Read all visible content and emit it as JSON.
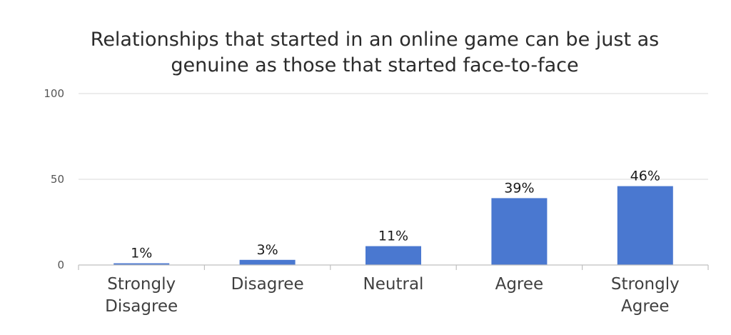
{
  "chart_data": {
    "type": "bar",
    "title": "Relationships that started in an online game can be just as genuine as those that started face-to-face",
    "title_lines": [
      "Relationships that started in an online game can be just as",
      "genuine as those that started face-to-face"
    ],
    "categories": [
      "Strongly Disagree",
      "Disagree",
      "Neutral",
      "Agree",
      "Strongly Agree"
    ],
    "category_lines": [
      [
        "Strongly",
        "Disagree"
      ],
      [
        "Disagree"
      ],
      [
        "Neutral"
      ],
      [
        "Agree"
      ],
      [
        "Strongly",
        "Agree"
      ]
    ],
    "values": [
      1,
      3,
      11,
      39,
      46
    ],
    "data_labels": [
      "1%",
      "3%",
      "11%",
      "39%",
      "46%"
    ],
    "ylim": [
      0,
      100
    ],
    "yticks": [
      0,
      50,
      100
    ],
    "xlabel": "",
    "ylabel": "",
    "grid": true,
    "legend": "none",
    "bar_color": "#4a78d0",
    "grid_color": "#d9d9d9",
    "axis_color": "#bfbfbf"
  }
}
